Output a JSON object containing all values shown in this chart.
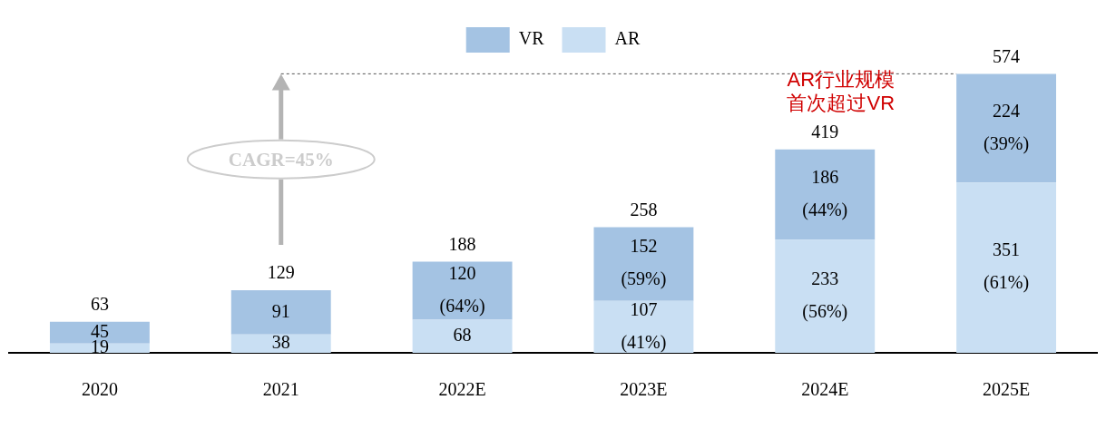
{
  "chart_data": {
    "type": "bar",
    "stacked": true,
    "legend": "top",
    "tick_labels": "x",
    "grid": false,
    "categories": [
      "2020",
      "2021",
      "2022E",
      "2023E",
      "2024E",
      "2025E"
    ],
    "series": [
      {
        "name": "AR",
        "color": "#c9dff3",
        "values": [
          19,
          38,
          68,
          107,
          233,
          351
        ],
        "value_labels": [
          "19",
          "38",
          "68",
          "107 (41%)",
          "233 (56%)",
          "351 (61%)"
        ]
      },
      {
        "name": "VR",
        "color": "#a4c3e3",
        "values": [
          45,
          91,
          120,
          152,
          186,
          224
        ],
        "value_labels": [
          "45",
          "91",
          "120 (64%)",
          "152 (59%)",
          "186 (44%)",
          "224 (39%)"
        ]
      }
    ],
    "totals": [
      "63",
      "129",
      "188",
      "258",
      "419",
      "574"
    ],
    "annotations": [
      "CAGR=45%",
      "AR行业规模首次超过VR"
    ]
  }
}
